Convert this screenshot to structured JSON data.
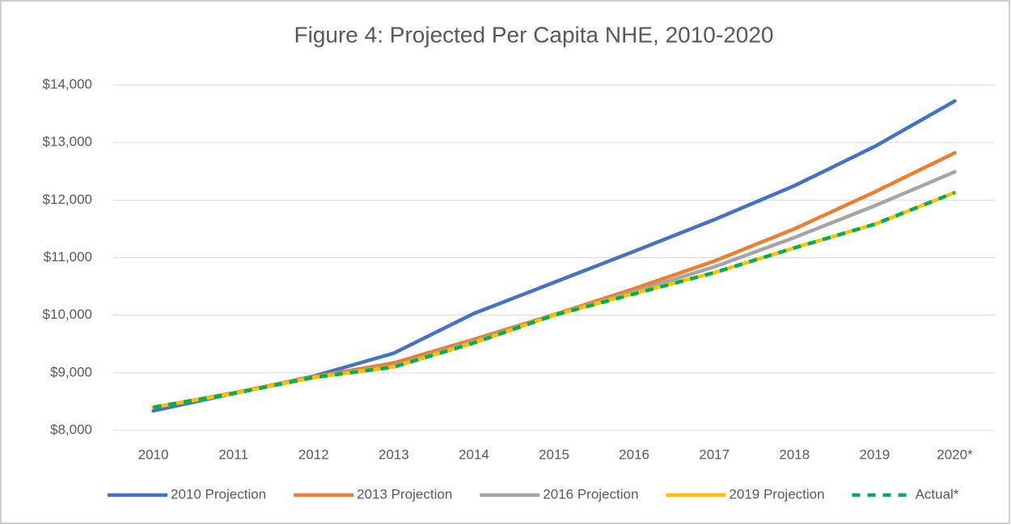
{
  "chart_data": {
    "type": "line",
    "title": "Figure 4: Projected Per Capita NHE, 2010-2020",
    "categories": [
      "2010",
      "2011",
      "2012",
      "2013",
      "2014",
      "2015",
      "2016",
      "2017",
      "2018",
      "2019",
      "2020*"
    ],
    "series": [
      {
        "name": "2010 Projection",
        "color": "#4472c4",
        "values": [
          8340,
          8640,
          8940,
          9340,
          10030,
          10570,
          11110,
          11660,
          12250,
          12930,
          13720
        ]
      },
      {
        "name": "2013 Projection",
        "color": "#ed7d31",
        "values": [
          8400,
          8650,
          8930,
          9170,
          9580,
          10010,
          10460,
          10940,
          11500,
          12140,
          12820
        ]
      },
      {
        "name": "2016 Projection",
        "color": "#a5a5a5",
        "values": [
          8400,
          8640,
          8920,
          9120,
          9540,
          10000,
          10410,
          10840,
          11350,
          11900,
          12490
        ]
      },
      {
        "name": "2019 Projection",
        "color": "#ffc000",
        "values": [
          8400,
          8640,
          8920,
          9100,
          9520,
          10000,
          10380,
          10740,
          11170,
          11580,
          12130
        ]
      },
      {
        "name": "Actual*",
        "color": "#00b050",
        "line_style": "dashed",
        "values": [
          8400,
          8640,
          8920,
          9100,
          9520,
          10000,
          10370,
          10740,
          11170,
          11580,
          12130
        ]
      }
    ],
    "ylim": [
      8000,
      14000
    ],
    "yticks": [
      {
        "value": 8000,
        "label": "$8,000"
      },
      {
        "value": 9000,
        "label": "$9,000"
      },
      {
        "value": 10000,
        "label": "$10,000"
      },
      {
        "value": 11000,
        "label": "$11,000"
      },
      {
        "value": 12000,
        "label": "$12,000"
      },
      {
        "value": 13000,
        "label": "$13,000"
      },
      {
        "value": 14000,
        "label": "$14,000"
      }
    ],
    "grid": true,
    "legend": "bottom"
  }
}
